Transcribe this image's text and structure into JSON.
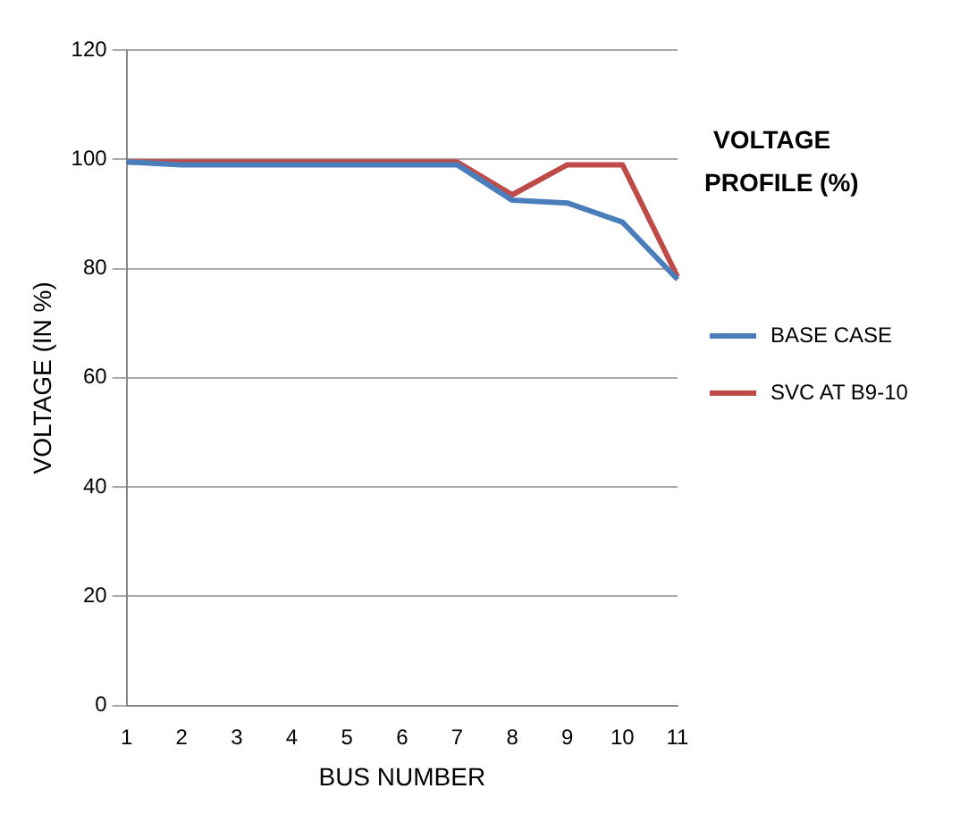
{
  "chart_data": {
    "type": "line",
    "title": "VOLTAGE\nPROFILE (%)",
    "xlabel": "BUS NUMBER",
    "ylabel": "VOLTAGE (IN %)",
    "categories": [
      "1",
      "2",
      "3",
      "4",
      "5",
      "6",
      "7",
      "8",
      "9",
      "10",
      "11"
    ],
    "series": [
      {
        "name": "BASE CASE",
        "color": "#4a7ebb",
        "values": [
          99.5,
          99,
          99,
          99,
          99,
          99,
          99,
          92.5,
          92,
          88.5,
          78
        ]
      },
      {
        "name": "SVC AT B9-10",
        "color": "#be4b48",
        "values": [
          99.5,
          99.5,
          99.5,
          99.5,
          99.5,
          99.5,
          99.5,
          93.5,
          99,
          99,
          78.5
        ]
      }
    ],
    "ylim": [
      0,
      120
    ],
    "yticks": [
      0,
      20,
      40,
      60,
      80,
      100,
      120
    ],
    "grid": "y",
    "legend": "right",
    "marker": "none",
    "line_style": "solid"
  }
}
